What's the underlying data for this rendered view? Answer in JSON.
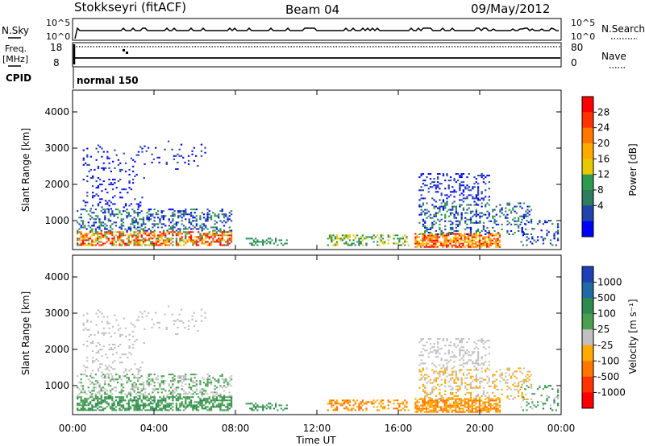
{
  "header": {
    "title": "Stokkseyri (fitACF)",
    "beam": "Beam 04",
    "date": "09/May/2012"
  },
  "top_panels": {
    "nsky_label": "N.Sky",
    "nsearch_label": "N.Search",
    "nsky_ticks": [
      "10^5",
      "10^0"
    ],
    "freq_label": "Freq.",
    "freq_unit": "[MHz]",
    "freq_ticks": [
      "18",
      "8"
    ],
    "nave_label": "Nave",
    "nave_ticks": [
      "80",
      "0"
    ],
    "cpid_label": "CPID",
    "cpid_text": "normal 150"
  },
  "chart_data": [
    {
      "type": "heatmap",
      "name": "power",
      "ylabel": "Slant Range [km]",
      "xlabel": "Time UT",
      "x_ticks": [
        "00:00",
        "04:00",
        "08:00",
        "12:00",
        "16:00",
        "20:00",
        "00:00"
      ],
      "y_ticks": [
        1000,
        2000,
        3000,
        4000
      ],
      "xlim": [
        0,
        24
      ],
      "ylim": [
        200,
        4600
      ],
      "colorbar": {
        "label": "Power [dB]",
        "ticks": [
          "28",
          "24",
          "20",
          "16",
          "12",
          "8",
          "4"
        ],
        "colors": [
          "#ff0000",
          "#ff3300",
          "#ff7700",
          "#ffaa00",
          "#e8c800",
          "#2e9a50",
          "#2e7d60",
          "#2244aa",
          "#0000ff"
        ]
      }
    },
    {
      "type": "heatmap",
      "name": "velocity",
      "ylabel": "Slant Range [km]",
      "xlabel": "Time UT",
      "x_ticks": [
        "00:00",
        "04:00",
        "08:00",
        "12:00",
        "16:00",
        "20:00",
        "00:00"
      ],
      "y_ticks": [
        1000,
        2000,
        3000,
        4000
      ],
      "xlim": [
        0,
        24
      ],
      "ylim": [
        200,
        4600
      ],
      "colorbar": {
        "label": "Velocity [m s⁻¹]",
        "ticks": [
          "1000",
          "500",
          "100",
          "25",
          "-25",
          "-100",
          "-500",
          "-1000"
        ],
        "colors": [
          "#1f3fb5",
          "#1f6aa5",
          "#2e8a50",
          "#4aa050",
          "#c0c0c0",
          "#ffaa00",
          "#ff7700",
          "#ff3300",
          "#ff0000"
        ]
      }
    }
  ]
}
